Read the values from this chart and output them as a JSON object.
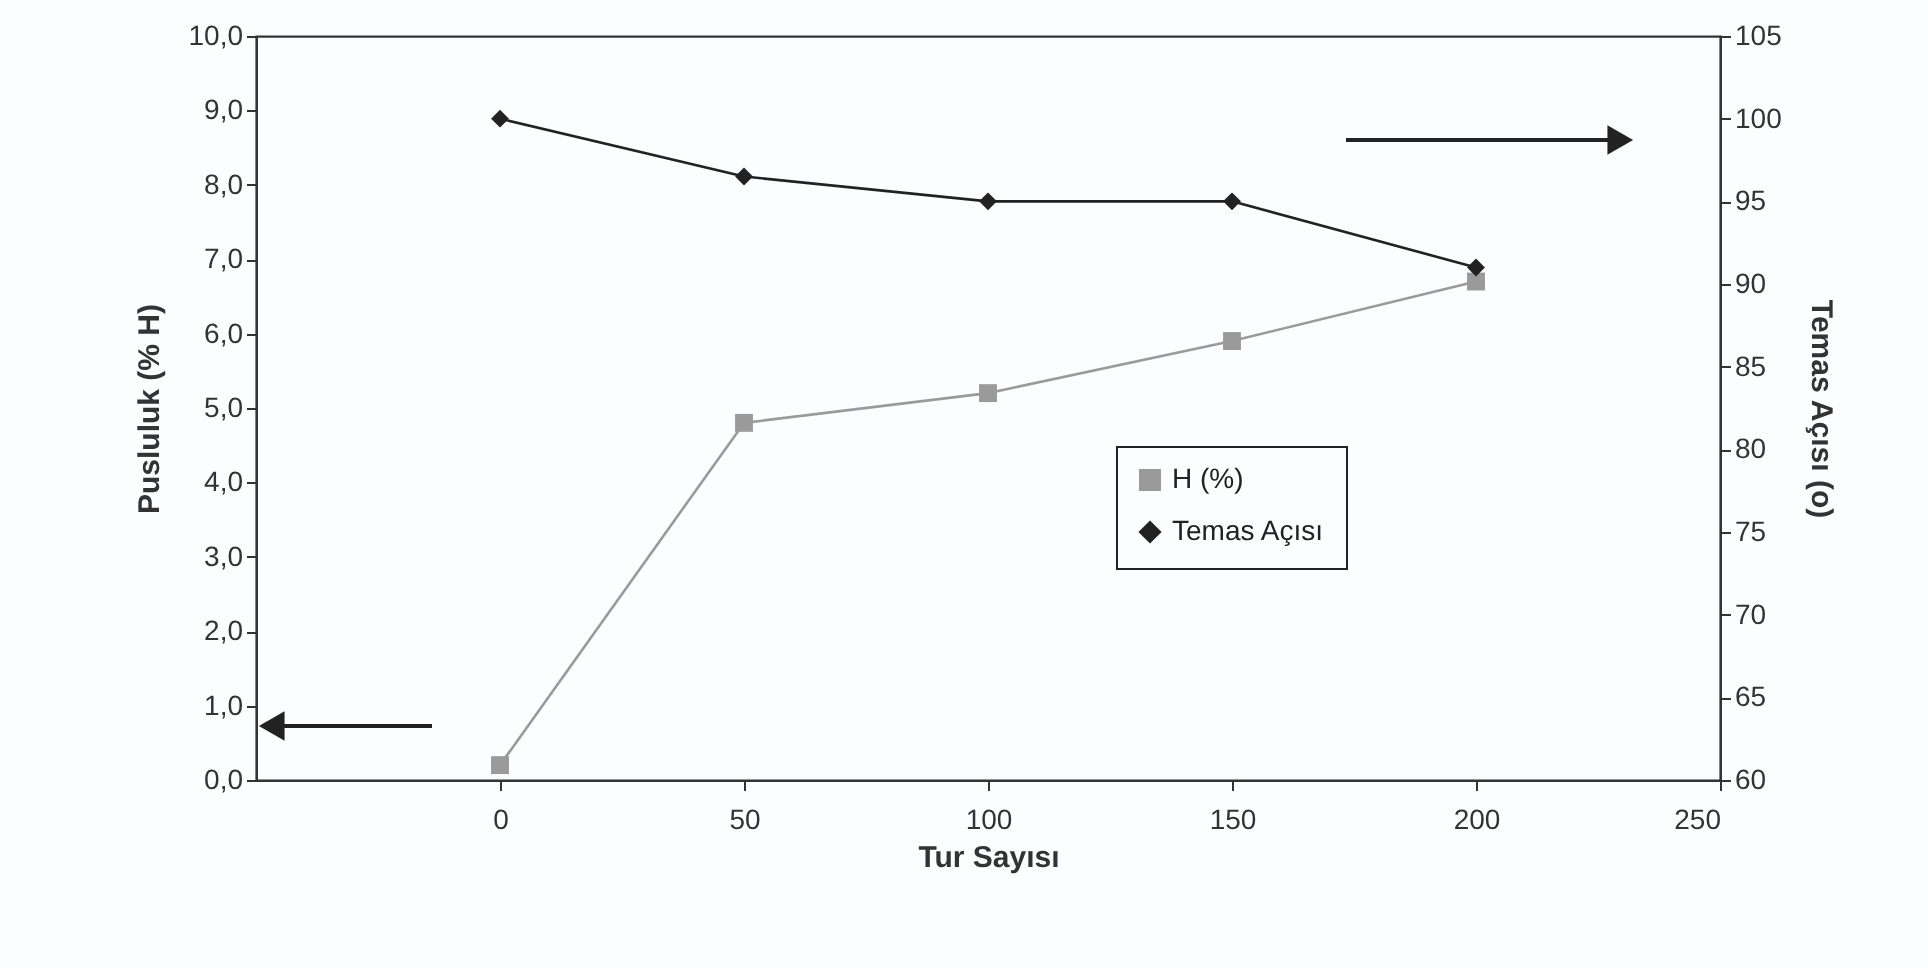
{
  "chart_data": {
    "type": "line",
    "xlabel": "Tur Sayısı",
    "ylabel": "Pusluluk (% H)",
    "y2label": "Temas Açısı (o)",
    "x": [
      0,
      50,
      100,
      150,
      200
    ],
    "series": [
      {
        "name": "H (%)",
        "color": "#9a9a9a",
        "marker": "square",
        "values": [
          0.2,
          4.8,
          5.2,
          5.9,
          6.7
        ]
      },
      {
        "name": "Temas Açısı",
        "color": "#222222",
        "marker": "diamond",
        "axis": "y2",
        "values": [
          100,
          96.5,
          95,
          95,
          91
        ]
      }
    ],
    "xlim": [
      -50,
      250
    ],
    "xticks": [
      0,
      50,
      100,
      150,
      200,
      250
    ],
    "ylim": [
      0,
      10
    ],
    "yticks": [
      {
        "value": 0,
        "label": "0,0"
      },
      {
        "value": 1,
        "label": "1,0"
      },
      {
        "value": 2,
        "label": "2,0"
      },
      {
        "value": 3,
        "label": "3,0"
      },
      {
        "value": 4,
        "label": "4,0"
      },
      {
        "value": 5,
        "label": "5,0"
      },
      {
        "value": 6,
        "label": "6,0"
      },
      {
        "value": 7,
        "label": "7,0"
      },
      {
        "value": 8,
        "label": "8,0"
      },
      {
        "value": 9,
        "label": "9,0"
      },
      {
        "value": 10,
        "label": "10,0"
      }
    ],
    "y2lim": [
      60,
      105
    ],
    "y2ticks": [
      60,
      65,
      70,
      75,
      80,
      85,
      90,
      95,
      100,
      105
    ],
    "legend": "right",
    "grid": false
  }
}
